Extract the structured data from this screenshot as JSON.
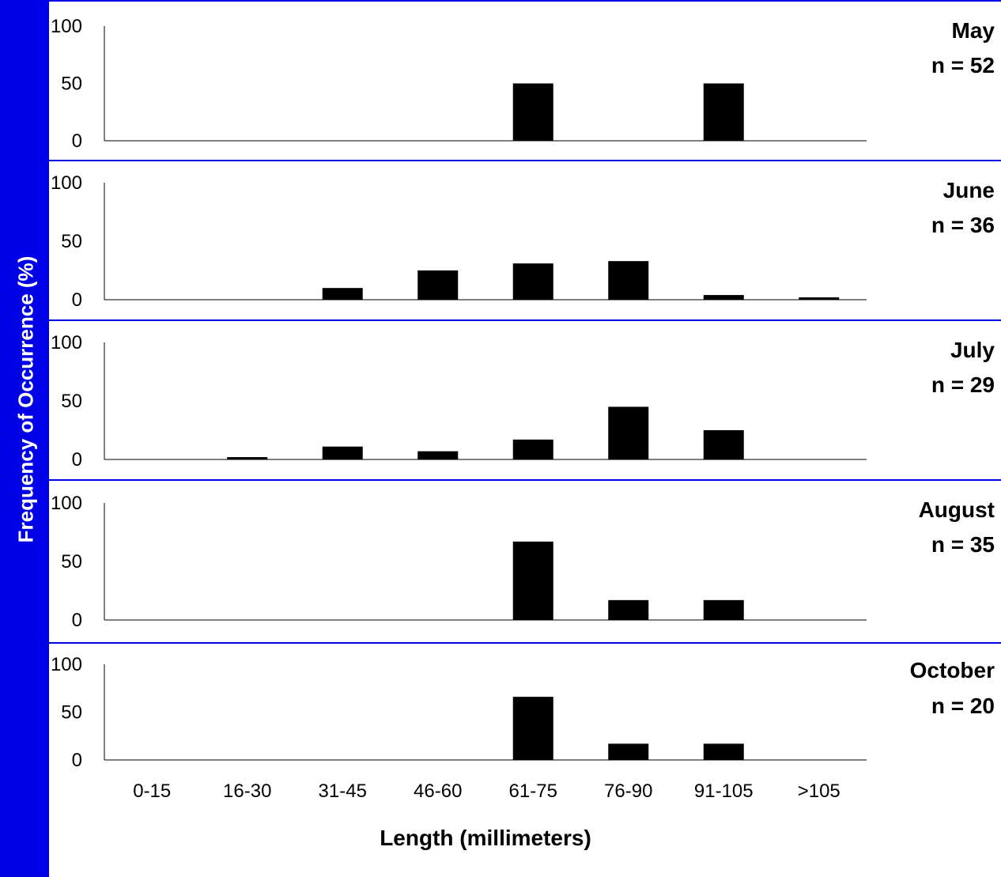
{
  "chart_data": {
    "type": "bar",
    "ylabel": "Frequency of Occurrence (%)",
    "xlabel": "Length (millimeters)",
    "categories": [
      "0-15",
      "16-30",
      "31-45",
      "46-60",
      "61-75",
      "76-90",
      "91-105",
      ">105"
    ],
    "ylim": [
      0,
      100
    ],
    "yticks": [
      "100",
      "50",
      "0"
    ],
    "grid": false,
    "bar_color": "#000000",
    "background_color": "#0000e6",
    "panels": [
      {
        "month": "May",
        "n_label": "n = 52",
        "values": [
          0,
          0,
          0,
          0,
          50,
          0,
          50,
          0
        ]
      },
      {
        "month": "June",
        "n_label": "n = 36",
        "values": [
          0,
          0,
          10,
          25,
          31,
          33,
          4,
          2
        ]
      },
      {
        "month": "July",
        "n_label": "n = 29",
        "values": [
          0,
          2,
          11,
          7,
          17,
          45,
          25,
          0
        ]
      },
      {
        "month": "August",
        "n_label": "n = 35",
        "values": [
          0,
          0,
          0,
          0,
          67,
          17,
          17,
          0
        ]
      },
      {
        "month": "October",
        "n_label": "n = 20",
        "values": [
          0,
          0,
          0,
          0,
          66,
          17,
          17,
          0
        ]
      }
    ]
  }
}
